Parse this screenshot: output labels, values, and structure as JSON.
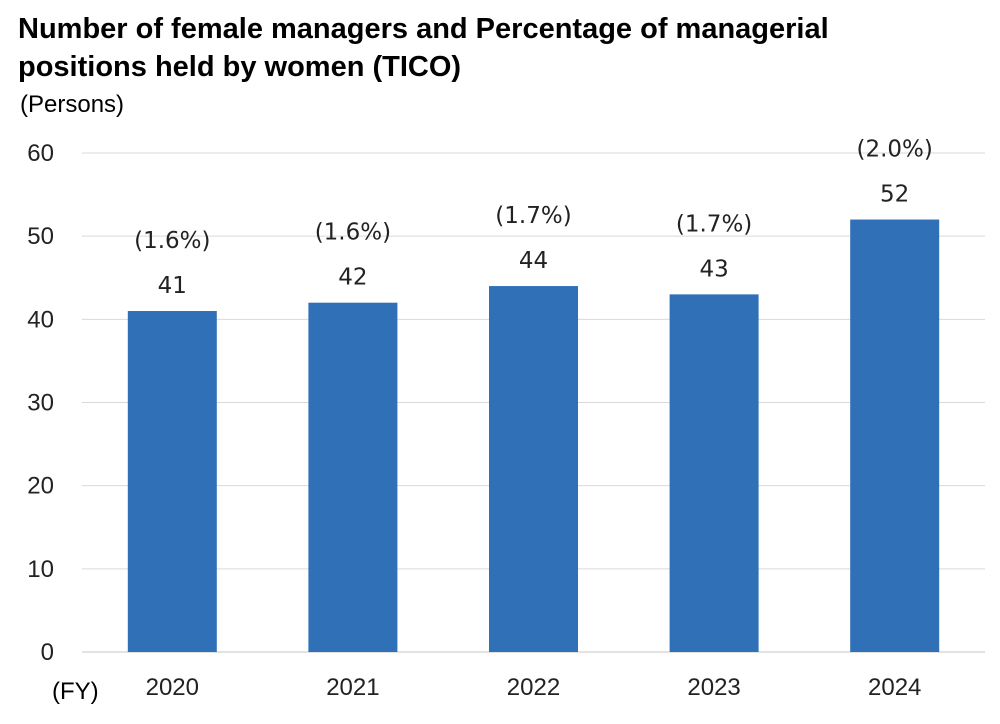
{
  "chart_data": {
    "type": "bar",
    "title": "Number of female managers and Percentage of managerial positions held by women (TICO)",
    "ylabel": "(Persons)",
    "xlabel": "(FY)",
    "categories": [
      "2020",
      "2021",
      "2022",
      "2023",
      "2024"
    ],
    "values": [
      41,
      42,
      44,
      43,
      52
    ],
    "percent_labels": [
      "(1.6%)",
      "(1.6%)",
      "(1.7%)",
      "(1.7%)",
      "(2.0%)"
    ],
    "ylim": [
      0,
      60
    ],
    "yticks": [
      0,
      10,
      20,
      30,
      40,
      50,
      60
    ],
    "grid": true,
    "legend": "none",
    "bar_color": "#2f70b7",
    "grid_color": "#d9d9d9"
  }
}
